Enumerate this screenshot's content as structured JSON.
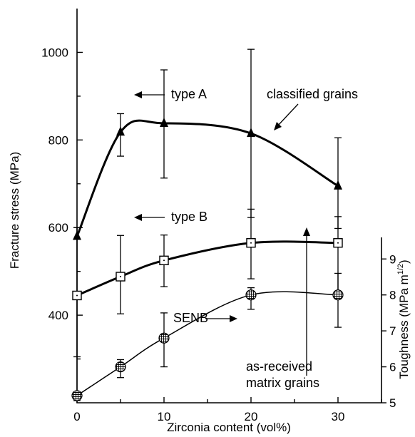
{
  "chart_data": {
    "type": "line",
    "xlabel": "Zirconia content (vol%)",
    "ylabel": "Fracture stress (MPa)",
    "y2label": "Toughness (MPa m",
    "y2label_exp": "1/2",
    "y2label_close": ")",
    "xlim": [
      0,
      35
    ],
    "ylim": [
      200,
      1100
    ],
    "y2lim": [
      5,
      9.6
    ],
    "x_ticks": [
      0,
      10,
      20,
      30
    ],
    "x_minor_ticks": [
      5,
      15,
      25,
      35
    ],
    "y_ticks": [
      400,
      600,
      800,
      1000
    ],
    "y_minor_ticks": [
      300,
      500,
      700,
      900
    ],
    "y2_ticks": [
      5,
      6,
      7,
      8,
      9
    ],
    "grid": false,
    "series": [
      {
        "name": "type A",
        "axis": "left",
        "marker": "triangle",
        "x": [
          0,
          5,
          10,
          20,
          30
        ],
        "y": [
          580,
          818,
          838,
          815,
          695
        ],
        "err_low": [
          205,
          763,
          713,
          623,
          598
        ],
        "err_high": [
          600,
          860,
          960,
          1007,
          805
        ]
      },
      {
        "name": "type B",
        "axis": "left",
        "marker": "square",
        "x": [
          0,
          5,
          10,
          20,
          30
        ],
        "y": [
          445,
          488,
          525,
          565,
          565
        ],
        "err_low": [
          305,
          403,
          465,
          483,
          445
        ],
        "err_high": [
          600,
          582,
          583,
          642,
          625
        ]
      },
      {
        "name": "SENB",
        "axis": "right",
        "marker": "hatched-circle",
        "x": [
          0,
          5,
          10,
          20,
          30
        ],
        "y": [
          5.2,
          6.0,
          6.8,
          8.0,
          8.0
        ],
        "err_low": [
          5.2,
          5.7,
          6.0,
          7.6,
          7.1
        ],
        "err_high": [
          5.2,
          6.2,
          7.5,
          8.2,
          8.6
        ]
      }
    ],
    "annotations": {
      "type_a": "type A",
      "classified": "classified grains",
      "type_b": "type B",
      "senb": "SENB",
      "as_received_line1": "as-received",
      "as_received_line2": "matrix grains"
    }
  }
}
